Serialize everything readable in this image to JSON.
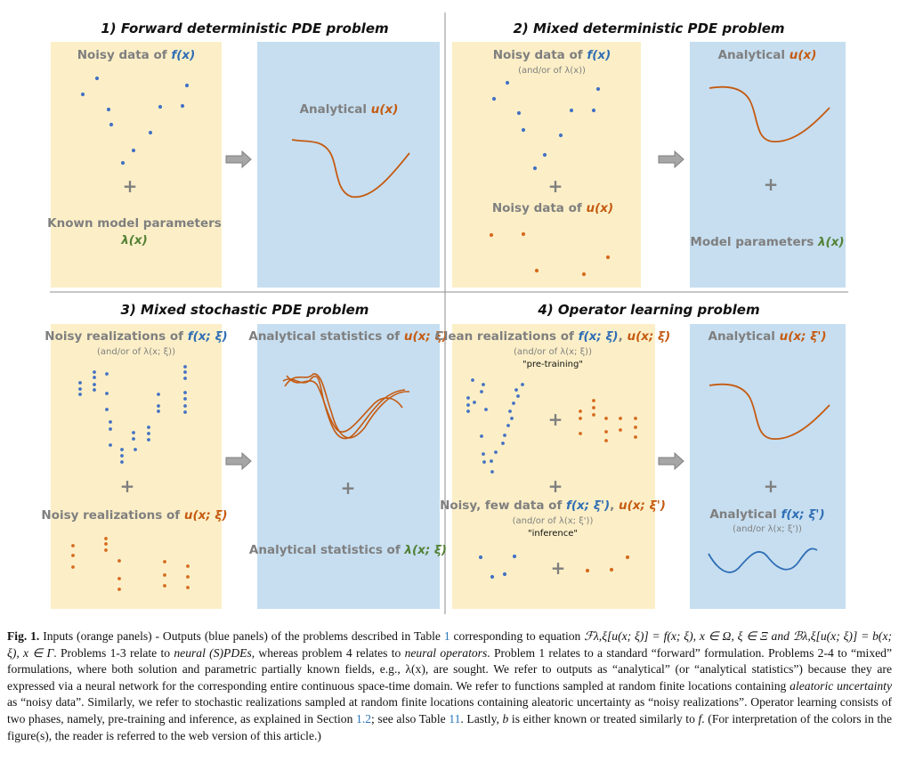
{
  "colors": {
    "orange_panel": "#fcefc7",
    "blue_panel": "#c6def0",
    "orange_text": "#c55a11",
    "blue_text": "#2f6eb5",
    "green_text": "#538135",
    "gray_text": "#7f7f7f",
    "blue_dot": "#4472c4",
    "orange_dot": "#d66b1f"
  },
  "quadrants": [
    {
      "title": "1) Forward deterministic PDE problem",
      "left": {
        "line1": [
          "Noisy data of ",
          "f(x)"
        ],
        "plus": "+",
        "line3": "Known model parameters",
        "line4": "λ(x)"
      },
      "right": {
        "label": [
          "Analytical ",
          "u(x)"
        ]
      }
    },
    {
      "title": "2) Mixed deterministic PDE problem",
      "left": {
        "line1": [
          "Noisy data of ",
          "f(x)"
        ],
        "sub": "(and/or of λ(x))",
        "plus": "+",
        "line2": [
          "Noisy data of ",
          "u(x)"
        ]
      },
      "right": {
        "label": [
          "Analytical ",
          "u(x)"
        ],
        "plus": "+",
        "label2": [
          "Model parameters ",
          "λ(x)"
        ]
      }
    },
    {
      "title": "3) Mixed stochastic PDE problem",
      "left": {
        "line1": [
          "Noisy realizations of ",
          "f(x; ξ)"
        ],
        "sub": "(and/or of λ(x; ξ))",
        "plus": "+",
        "line2": [
          "Noisy realizations of ",
          "u(x; ξ)"
        ]
      },
      "right": {
        "label": [
          "Analytical statistics of ",
          "u(x; ξ)"
        ],
        "plus": "+",
        "label2": [
          "Analytical statistics of ",
          "λ(x; ξ)"
        ]
      }
    },
    {
      "title": "4) Operator learning problem",
      "left": {
        "line1": [
          "Clean realizations of ",
          "f(x; ξ)",
          ", ",
          "u(x; ξ)"
        ],
        "sub": "(and/or of λ(x; ξ))",
        "sub2": "\"pre-training\"",
        "plus": "+",
        "line2": [
          "Noisy, few data of ",
          "f(x; ξ')",
          ", ",
          "u(x; ξ')"
        ],
        "sub3": "(and/or of λ(x; ξ'))",
        "sub4": "\"inference\""
      },
      "right": {
        "label": [
          "Analytical ",
          "u(x; ξ')"
        ],
        "plus": "+",
        "label2": [
          "Analytical ",
          "f(x; ξ')"
        ],
        "sub": "(and/or λ(x; ξ'))"
      }
    }
  ],
  "caption": {
    "lead": "Fig. 1.",
    "p1": " Inputs (orange panels) - Outputs (blue panels) of the problems described in Table ",
    "ref1": "1",
    "p2": " corresponding to equation ",
    "eq": "ℱλ,ξ[u(x; ξ)] = f(x; ξ), x ∈ Ω, ξ ∈ Ξ and ℬλ,ξ[u(x; ξ)] = b(x; ξ), x ∈ Γ",
    "p3": ". Problems 1-3 relate to ",
    "em1": "neural (S)PDEs",
    "p4": ", whereas problem 4 relates to ",
    "em2": "neural operators",
    "p5": ". Problem 1 relates to a standard “forward” formulation. Problems 2-4 to “mixed” formulations, where both solution and parametric partially known fields, e.g., λ(x), are sought. We refer to outputs as “analytical” (or “analytical statistics”) because they are expressed via a neural network for the corresponding entire continuous space-time domain. We refer to functions sampled at random finite locations containing ",
    "em3": "aleatoric uncertainty",
    "p6": " as “noisy data”. Similarly, we refer to stochastic realizations sampled at random finite locations containing aleatoric uncertainty as “noisy realizations”. Operator learning consists of two phases, namely, pre-training and inference, as explained in Section ",
    "ref2": "1.2",
    "p7": "; see also Table ",
    "ref3": "11",
    "p8": ". Lastly, ",
    "em4": "b",
    "p9": " is either known or treated similarly to ",
    "em5": "f",
    "p10": ". (For interpretation of the colors in the figure(s), the reader is referred to the web version of this article.)"
  }
}
